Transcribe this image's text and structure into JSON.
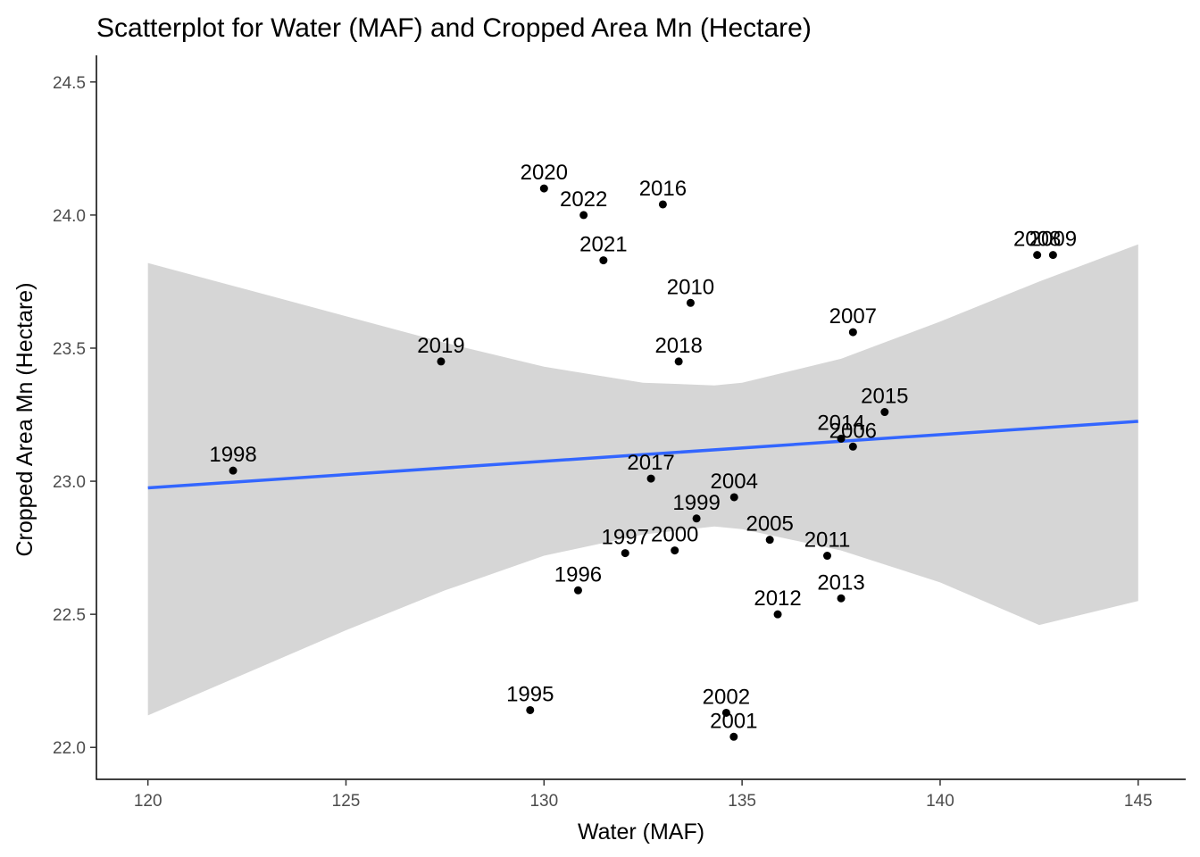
{
  "chart_data": {
    "type": "scatter",
    "title": "Scatterplot for Water (MAF) and Cropped Area Mn (Hectare)",
    "xlabel": "Water (MAF)",
    "ylabel": "Cropped Area Mn (Hectare)",
    "xlim": [
      118.7,
      146.2
    ],
    "ylim": [
      21.88,
      24.6
    ],
    "x_ticks": [
      120,
      125,
      130,
      135,
      140,
      145
    ],
    "x_tick_labels": [
      "120",
      "125",
      "130",
      "135",
      "140",
      "145"
    ],
    "y_ticks": [
      22.0,
      22.5,
      23.0,
      23.5,
      24.0,
      24.5
    ],
    "y_tick_labels": [
      "22.0",
      "22.5",
      "23.0",
      "23.5",
      "24.0",
      "24.5"
    ],
    "grid": false,
    "points": [
      {
        "label": "1995",
        "x": 129.65,
        "y": 22.14
      },
      {
        "label": "1996",
        "x": 130.86,
        "y": 22.59
      },
      {
        "label": "1997",
        "x": 132.05,
        "y": 22.73
      },
      {
        "label": "1998",
        "x": 122.15,
        "y": 23.04
      },
      {
        "label": "1999",
        "x": 133.85,
        "y": 22.86
      },
      {
        "label": "2000",
        "x": 133.3,
        "y": 22.74
      },
      {
        "label": "2001",
        "x": 134.79,
        "y": 22.04
      },
      {
        "label": "2002",
        "x": 134.6,
        "y": 22.13
      },
      {
        "label": "2004",
        "x": 134.8,
        "y": 22.94
      },
      {
        "label": "2005",
        "x": 135.7,
        "y": 22.78
      },
      {
        "label": "2006",
        "x": 137.8,
        "y": 23.13
      },
      {
        "label": "2007",
        "x": 137.8,
        "y": 23.56
      },
      {
        "label": "2008",
        "x": 142.45,
        "y": 23.85
      },
      {
        "label": "2009",
        "x": 142.85,
        "y": 23.85
      },
      {
        "label": "2010",
        "x": 133.7,
        "y": 23.67
      },
      {
        "label": "2011",
        "x": 137.15,
        "y": 22.72
      },
      {
        "label": "2012",
        "x": 135.9,
        "y": 22.5
      },
      {
        "label": "2013",
        "x": 137.5,
        "y": 22.56
      },
      {
        "label": "2014",
        "x": 137.5,
        "y": 23.16
      },
      {
        "label": "2015",
        "x": 138.6,
        "y": 23.26
      },
      {
        "label": "2016",
        "x": 133.0,
        "y": 24.04
      },
      {
        "label": "2017",
        "x": 132.7,
        "y": 23.01
      },
      {
        "label": "2018",
        "x": 133.4,
        "y": 23.45
      },
      {
        "label": "2019",
        "x": 127.4,
        "y": 23.45
      },
      {
        "label": "2020",
        "x": 130.0,
        "y": 24.1
      },
      {
        "label": "2021",
        "x": 131.5,
        "y": 23.83
      },
      {
        "label": "2022",
        "x": 131.0,
        "y": 24.0
      }
    ],
    "regression_line": {
      "x": [
        120,
        145
      ],
      "y": [
        22.975,
        23.225
      ],
      "color": "#3366ff"
    },
    "confidence_band": {
      "x": [
        120,
        122.5,
        125,
        127.5,
        130,
        132.5,
        134.3,
        135,
        137.5,
        140,
        142.5,
        145
      ],
      "upper": [
        23.82,
        23.72,
        23.62,
        23.52,
        23.43,
        23.37,
        23.36,
        23.37,
        23.46,
        23.6,
        23.75,
        23.89
      ],
      "lower": [
        22.12,
        22.28,
        22.44,
        22.59,
        22.72,
        22.8,
        22.83,
        22.82,
        22.74,
        22.62,
        22.46,
        22.55
      ]
    },
    "point_color": "#000000",
    "band_color": "#d6d6d6"
  }
}
